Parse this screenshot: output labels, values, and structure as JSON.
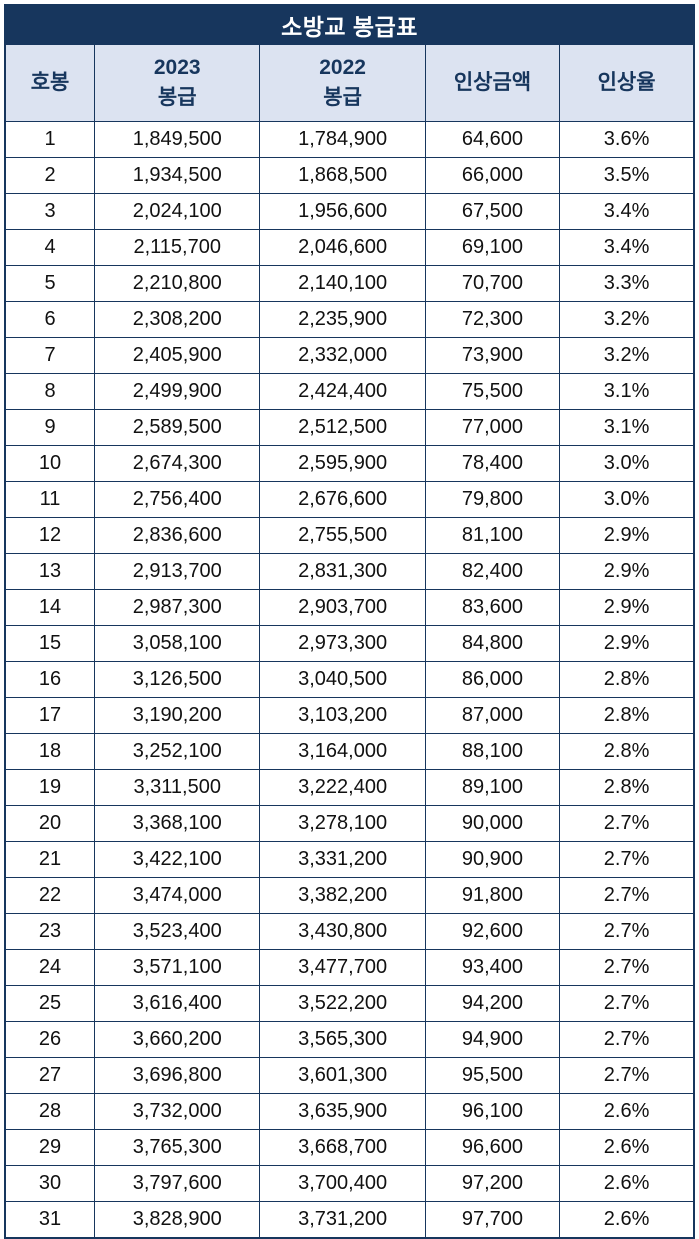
{
  "title": "소방교 봉급표",
  "table": {
    "headers": [
      "호봉",
      "2023\n봉급",
      "2022\n봉급",
      "인상금액",
      "인상율"
    ],
    "rows": [
      [
        "1",
        "1,849,500",
        "1,784,900",
        "64,600",
        "3.6%"
      ],
      [
        "2",
        "1,934,500",
        "1,868,500",
        "66,000",
        "3.5%"
      ],
      [
        "3",
        "2,024,100",
        "1,956,600",
        "67,500",
        "3.4%"
      ],
      [
        "4",
        "2,115,700",
        "2,046,600",
        "69,100",
        "3.4%"
      ],
      [
        "5",
        "2,210,800",
        "2,140,100",
        "70,700",
        "3.3%"
      ],
      [
        "6",
        "2,308,200",
        "2,235,900",
        "72,300",
        "3.2%"
      ],
      [
        "7",
        "2,405,900",
        "2,332,000",
        "73,900",
        "3.2%"
      ],
      [
        "8",
        "2,499,900",
        "2,424,400",
        "75,500",
        "3.1%"
      ],
      [
        "9",
        "2,589,500",
        "2,512,500",
        "77,000",
        "3.1%"
      ],
      [
        "10",
        "2,674,300",
        "2,595,900",
        "78,400",
        "3.0%"
      ],
      [
        "11",
        "2,756,400",
        "2,676,600",
        "79,800",
        "3.0%"
      ],
      [
        "12",
        "2,836,600",
        "2,755,500",
        "81,100",
        "2.9%"
      ],
      [
        "13",
        "2,913,700",
        "2,831,300",
        "82,400",
        "2.9%"
      ],
      [
        "14",
        "2,987,300",
        "2,903,700",
        "83,600",
        "2.9%"
      ],
      [
        "15",
        "3,058,100",
        "2,973,300",
        "84,800",
        "2.9%"
      ],
      [
        "16",
        "3,126,500",
        "3,040,500",
        "86,000",
        "2.8%"
      ],
      [
        "17",
        "3,190,200",
        "3,103,200",
        "87,000",
        "2.8%"
      ],
      [
        "18",
        "3,252,100",
        "3,164,000",
        "88,100",
        "2.8%"
      ],
      [
        "19",
        "3,311,500",
        "3,222,400",
        "89,100",
        "2.8%"
      ],
      [
        "20",
        "3,368,100",
        "3,278,100",
        "90,000",
        "2.7%"
      ],
      [
        "21",
        "3,422,100",
        "3,331,200",
        "90,900",
        "2.7%"
      ],
      [
        "22",
        "3,474,000",
        "3,382,200",
        "91,800",
        "2.7%"
      ],
      [
        "23",
        "3,523,400",
        "3,430,800",
        "92,600",
        "2.7%"
      ],
      [
        "24",
        "3,571,100",
        "3,477,700",
        "93,400",
        "2.7%"
      ],
      [
        "25",
        "3,616,400",
        "3,522,200",
        "94,200",
        "2.7%"
      ],
      [
        "26",
        "3,660,200",
        "3,565,300",
        "94,900",
        "2.7%"
      ],
      [
        "27",
        "3,696,800",
        "3,601,300",
        "95,500",
        "2.7%"
      ],
      [
        "28",
        "3,732,000",
        "3,635,900",
        "96,100",
        "2.6%"
      ],
      [
        "29",
        "3,765,300",
        "3,668,700",
        "96,600",
        "2.6%"
      ],
      [
        "30",
        "3,797,600",
        "3,700,400",
        "97,200",
        "2.6%"
      ],
      [
        "31",
        "3,828,900",
        "3,731,200",
        "97,700",
        "2.6%"
      ]
    ]
  },
  "colors": {
    "title_bg": "#17365d",
    "title_text": "#ffffff",
    "header_bg": "#dce3f1",
    "header_text": "#17365d",
    "border": "#17365d",
    "body_text": "#111111"
  },
  "chart_data": {
    "type": "table",
    "title": "소방교 봉급표",
    "columns": [
      "호봉",
      "2023 봉급",
      "2022 봉급",
      "인상금액",
      "인상율"
    ],
    "rows": [
      [
        1,
        1849500,
        1784900,
        64600,
        "3.6%"
      ],
      [
        2,
        1934500,
        1868500,
        66000,
        "3.5%"
      ],
      [
        3,
        2024100,
        1956600,
        67500,
        "3.4%"
      ],
      [
        4,
        2115700,
        2046600,
        69100,
        "3.4%"
      ],
      [
        5,
        2210800,
        2140100,
        70700,
        "3.3%"
      ],
      [
        6,
        2308200,
        2235900,
        72300,
        "3.2%"
      ],
      [
        7,
        2405900,
        2332000,
        73900,
        "3.2%"
      ],
      [
        8,
        2499900,
        2424400,
        75500,
        "3.1%"
      ],
      [
        9,
        2589500,
        2512500,
        77000,
        "3.1%"
      ],
      [
        10,
        2674300,
        2595900,
        78400,
        "3.0%"
      ],
      [
        11,
        2756400,
        2676600,
        79800,
        "3.0%"
      ],
      [
        12,
        2836600,
        2755500,
        81100,
        "2.9%"
      ],
      [
        13,
        2913700,
        2831300,
        82400,
        "2.9%"
      ],
      [
        14,
        2987300,
        2903700,
        83600,
        "2.9%"
      ],
      [
        15,
        3058100,
        2973300,
        84800,
        "2.9%"
      ],
      [
        16,
        3126500,
        3040500,
        86000,
        "2.8%"
      ],
      [
        17,
        3190200,
        3103200,
        87000,
        "2.8%"
      ],
      [
        18,
        3252100,
        3164000,
        88100,
        "2.8%"
      ],
      [
        19,
        3311500,
        3222400,
        89100,
        "2.8%"
      ],
      [
        20,
        3368100,
        3278100,
        90000,
        "2.7%"
      ],
      [
        21,
        3422100,
        3331200,
        90900,
        "2.7%"
      ],
      [
        22,
        3474000,
        3382200,
        91800,
        "2.7%"
      ],
      [
        23,
        3523400,
        3430800,
        92600,
        "2.7%"
      ],
      [
        24,
        3571100,
        3477700,
        93400,
        "2.7%"
      ],
      [
        25,
        3616400,
        3522200,
        94200,
        "2.7%"
      ],
      [
        26,
        3660200,
        3565300,
        94900,
        "2.7%"
      ],
      [
        27,
        3696800,
        3601300,
        95500,
        "2.7%"
      ],
      [
        28,
        3732000,
        3635900,
        96100,
        "2.6%"
      ],
      [
        29,
        3765300,
        3668700,
        96600,
        "2.6%"
      ],
      [
        30,
        3797600,
        3700400,
        97200,
        "2.6%"
      ],
      [
        31,
        3828900,
        3731200,
        97700,
        "2.6%"
      ]
    ]
  }
}
